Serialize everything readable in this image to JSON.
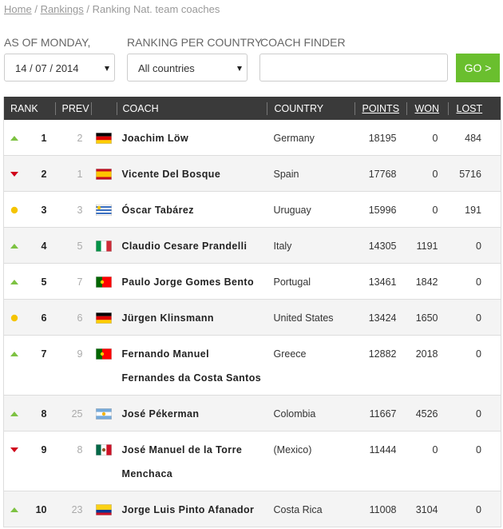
{
  "breadcrumb": {
    "items": [
      "Home",
      "Rankings",
      "Ranking Nat. team coaches"
    ],
    "separator": "/"
  },
  "filters": {
    "date_label": "AS OF MONDAY,",
    "date_value": "14 / 07 / 2014",
    "country_label": "RANKING PER COUNTRY",
    "country_value": "All countries",
    "finder_label": "COACH FINDER",
    "button": "GO >"
  },
  "table": {
    "headers": [
      "RANK",
      "PREV",
      "COACH",
      "COUNTRY",
      "POINTS",
      "WON",
      "LOST"
    ],
    "rows": [
      [
        1,
        2,
        "Joachim Löw",
        "Germany",
        18195,
        0,
        484
      ],
      [
        2,
        1,
        "Vicente Del Bosque",
        "Spain",
        17768,
        0,
        5716
      ],
      [
        3,
        3,
        "Óscar Tabárez",
        "Uruguay",
        15996,
        0,
        191
      ],
      [
        4,
        5,
        "Claudio Cesare Prandelli",
        "Italy",
        14305,
        1191,
        0
      ],
      [
        5,
        7,
        "Paulo Jorge Gomes Bento",
        "Portugal",
        13461,
        1842,
        0
      ],
      [
        6,
        6,
        "Jürgen Klinsmann",
        "United States",
        13424,
        1650,
        0
      ],
      [
        7,
        9,
        "Fernando Manuel Fernandes da Costa Santos",
        "Greece",
        12882,
        2018,
        0
      ],
      [
        8,
        25,
        "José Pékerman",
        "Colombia",
        11667,
        4526,
        0
      ],
      [
        9,
        8,
        "José Manuel de la Torre Menchaca",
        "(Mexico)",
        11444,
        0,
        0
      ],
      [
        10,
        23,
        "Jorge Luis Pinto Afanador",
        "Costa Rica",
        11008,
        3104,
        0
      ]
    ]
  }
}
